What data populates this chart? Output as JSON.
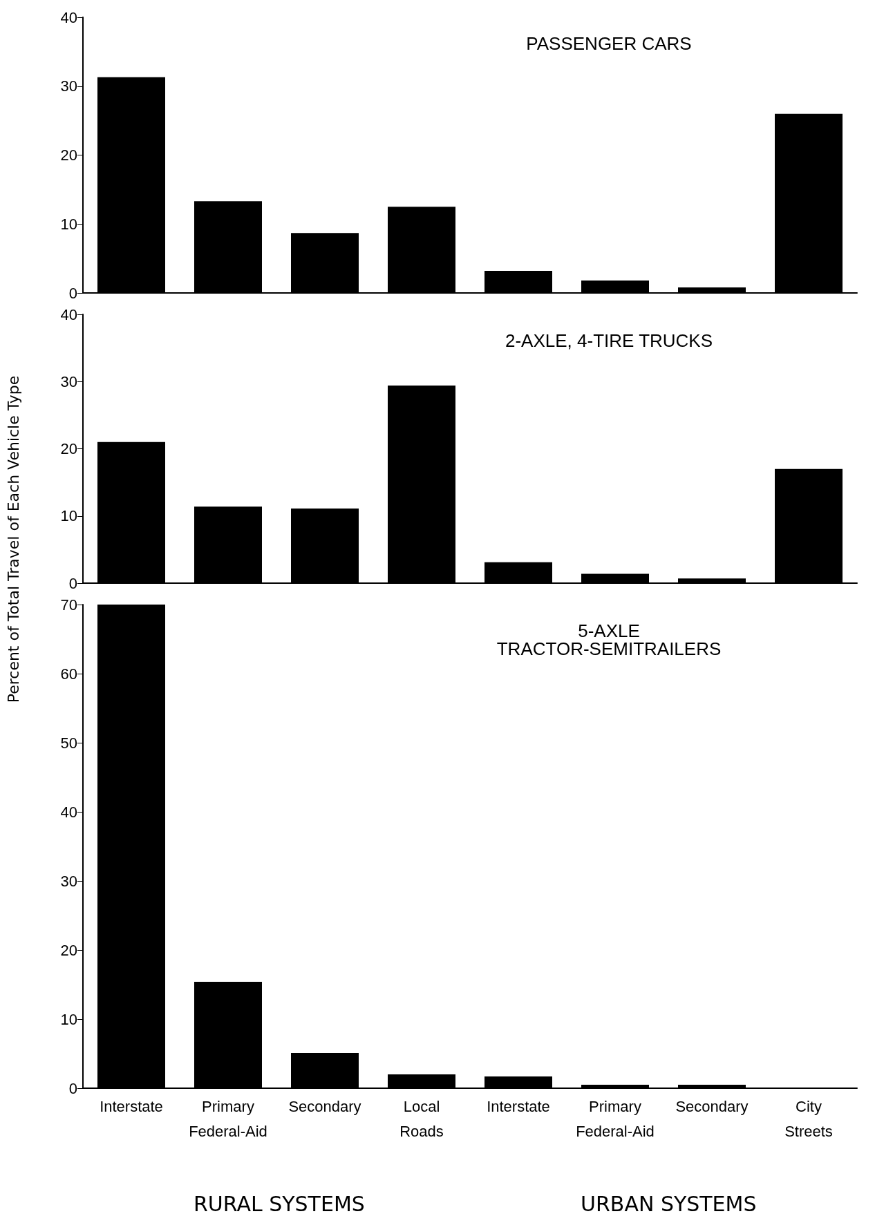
{
  "chart_data": [
    {
      "type": "bar",
      "title": "PASSENGER CARS",
      "categories": [
        null,
        null,
        null,
        null,
        null,
        null,
        null,
        null
      ],
      "values": [
        31.3,
        13.3,
        8.7,
        12.5,
        3.2,
        1.8,
        0.8,
        26
      ],
      "color": "#000000",
      "ylim": [
        0,
        40
      ],
      "yticks": [
        0,
        10,
        20,
        30,
        40
      ],
      "tick_labels": "y"
    },
    {
      "type": "bar",
      "title": "2-AXLE, 4-TIRE TRUCKS",
      "ylabel": "Percent of Total Travel of Each Vehicle Type",
      "categories": [
        null,
        null,
        null,
        null,
        null,
        null,
        null,
        null
      ],
      "values": [
        21,
        11.4,
        11.1,
        29.4,
        3.1,
        1.4,
        0.7,
        17
      ],
      "color": "#000000",
      "ylim": [
        0,
        40
      ],
      "yticks": [
        0,
        10,
        20,
        30,
        40
      ],
      "tick_labels": "y"
    },
    {
      "type": "bar",
      "title": "5-AXLE\nTRACTOR-SEMITRAILERS",
      "categories": [
        "Interstate",
        "Primary Federal-Aid",
        "Secondary",
        "Local Roads",
        "Interstate",
        "Primary Federal-Aid",
        "Secondary",
        "City Streets"
      ],
      "values": [
        70,
        15.4,
        5.1,
        2,
        1.7,
        0.5,
        0.5,
        0.1
      ],
      "color": "#000000",
      "ylim": [
        0,
        70
      ],
      "yticks": [
        0,
        10,
        20,
        30,
        40,
        50,
        60,
        70
      ],
      "annotations": [
        "RURAL SYSTEMS",
        "URBAN SYSTEMS"
      ]
    }
  ]
}
